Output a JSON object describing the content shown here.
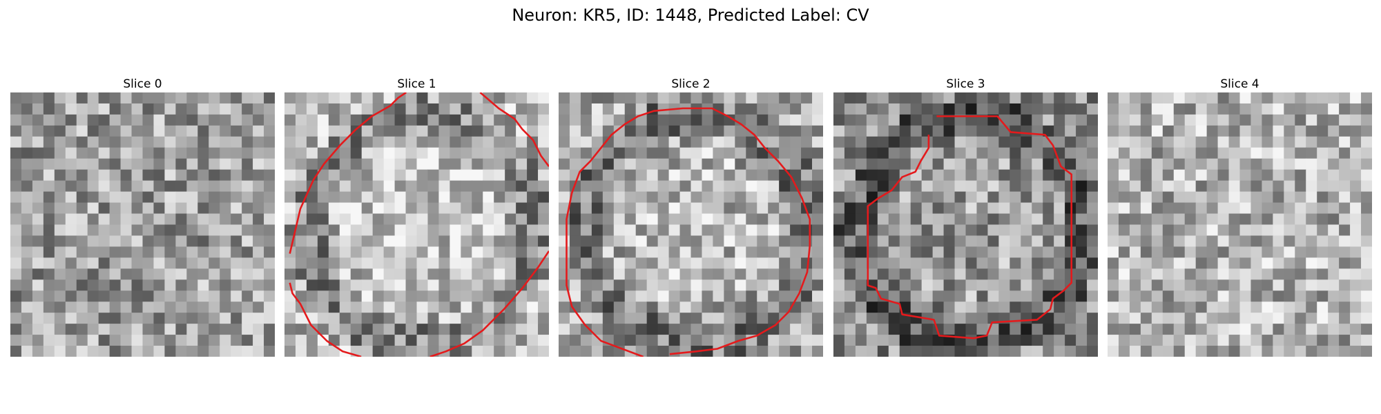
{
  "figure": {
    "title": "Neuron: KR5, ID: 1448, Predicted Label: CV"
  },
  "colors": {
    "contour": "#e41a1c",
    "background": "#ffffff"
  },
  "grid_size": 24,
  "panels": [
    {
      "label": "Slice 0",
      "noise_seed": 11,
      "base_mean": 0.62,
      "has_contour": false,
      "contour": []
    },
    {
      "label": "Slice 1",
      "noise_seed": 23,
      "base_mean": 0.72,
      "has_contour": true,
      "contour": [
        [
          [
            0.02,
            0.61
          ],
          [
            0.06,
            0.44
          ],
          [
            0.11,
            0.33
          ],
          [
            0.15,
            0.27
          ],
          [
            0.21,
            0.2
          ],
          [
            0.27,
            0.14
          ],
          [
            0.33,
            0.09
          ],
          [
            0.4,
            0.05
          ],
          [
            0.43,
            0.02
          ],
          [
            0.46,
            0.0
          ]
        ],
        [
          [
            0.74,
            0.0
          ],
          [
            0.81,
            0.06
          ],
          [
            0.87,
            0.1
          ],
          [
            0.9,
            0.14
          ],
          [
            0.94,
            0.18
          ],
          [
            0.97,
            0.24
          ],
          [
            1.0,
            0.28
          ]
        ],
        [
          [
            1.0,
            0.6
          ],
          [
            0.96,
            0.66
          ],
          [
            0.9,
            0.74
          ],
          [
            0.83,
            0.82
          ],
          [
            0.75,
            0.9
          ],
          [
            0.68,
            0.95
          ],
          [
            0.61,
            0.98
          ],
          [
            0.55,
            1.0
          ]
        ],
        [
          [
            0.29,
            1.0
          ],
          [
            0.22,
            0.98
          ],
          [
            0.16,
            0.94
          ],
          [
            0.1,
            0.88
          ],
          [
            0.06,
            0.8
          ],
          [
            0.03,
            0.76
          ],
          [
            0.02,
            0.72
          ]
        ]
      ]
    },
    {
      "label": "Slice 2",
      "noise_seed": 37,
      "base_mean": 0.66,
      "has_contour": true,
      "contour": [
        [
          [
            0.32,
            1.0
          ],
          [
            0.24,
            0.97
          ],
          [
            0.16,
            0.94
          ],
          [
            0.1,
            0.88
          ],
          [
            0.05,
            0.81
          ],
          [
            0.03,
            0.73
          ],
          [
            0.03,
            0.6
          ],
          [
            0.03,
            0.48
          ],
          [
            0.05,
            0.38
          ],
          [
            0.08,
            0.3
          ],
          [
            0.12,
            0.26
          ],
          [
            0.16,
            0.21
          ],
          [
            0.2,
            0.16
          ],
          [
            0.25,
            0.12
          ],
          [
            0.3,
            0.09
          ],
          [
            0.36,
            0.07
          ],
          [
            0.47,
            0.06
          ],
          [
            0.58,
            0.06
          ],
          [
            0.64,
            0.09
          ],
          [
            0.69,
            0.12
          ],
          [
            0.74,
            0.16
          ],
          [
            0.78,
            0.21
          ],
          [
            0.83,
            0.26
          ],
          [
            0.88,
            0.32
          ],
          [
            0.92,
            0.4
          ],
          [
            0.95,
            0.48
          ],
          [
            0.95,
            0.58
          ],
          [
            0.94,
            0.68
          ],
          [
            0.91,
            0.76
          ],
          [
            0.87,
            0.83
          ],
          [
            0.82,
            0.88
          ],
          [
            0.75,
            0.92
          ],
          [
            0.68,
            0.94
          ],
          [
            0.6,
            0.97
          ],
          [
            0.52,
            0.98
          ],
          [
            0.42,
            0.99
          ]
        ]
      ]
    },
    {
      "label": "Slice 3",
      "noise_seed": 53,
      "base_mean": 0.55,
      "has_contour": true,
      "contour": [
        [
          [
            0.39,
            0.09
          ],
          [
            0.62,
            0.09
          ],
          [
            0.67,
            0.15
          ],
          [
            0.8,
            0.16
          ],
          [
            0.83,
            0.2
          ],
          [
            0.86,
            0.28
          ],
          [
            0.9,
            0.31
          ],
          [
            0.9,
            0.72
          ],
          [
            0.87,
            0.75
          ],
          [
            0.83,
            0.78
          ],
          [
            0.82,
            0.82
          ],
          [
            0.77,
            0.86
          ],
          [
            0.6,
            0.87
          ],
          [
            0.58,
            0.92
          ],
          [
            0.53,
            0.93
          ],
          [
            0.4,
            0.92
          ],
          [
            0.38,
            0.86
          ],
          [
            0.26,
            0.84
          ],
          [
            0.25,
            0.8
          ],
          [
            0.18,
            0.78
          ],
          [
            0.16,
            0.74
          ],
          [
            0.13,
            0.73
          ],
          [
            0.13,
            0.43
          ],
          [
            0.17,
            0.4
          ],
          [
            0.22,
            0.37
          ],
          [
            0.26,
            0.32
          ],
          [
            0.31,
            0.3
          ],
          [
            0.33,
            0.26
          ],
          [
            0.36,
            0.21
          ],
          [
            0.36,
            0.16
          ]
        ]
      ]
    },
    {
      "label": "Slice 4",
      "noise_seed": 71,
      "base_mean": 0.7,
      "has_contour": false,
      "contour": []
    }
  ]
}
